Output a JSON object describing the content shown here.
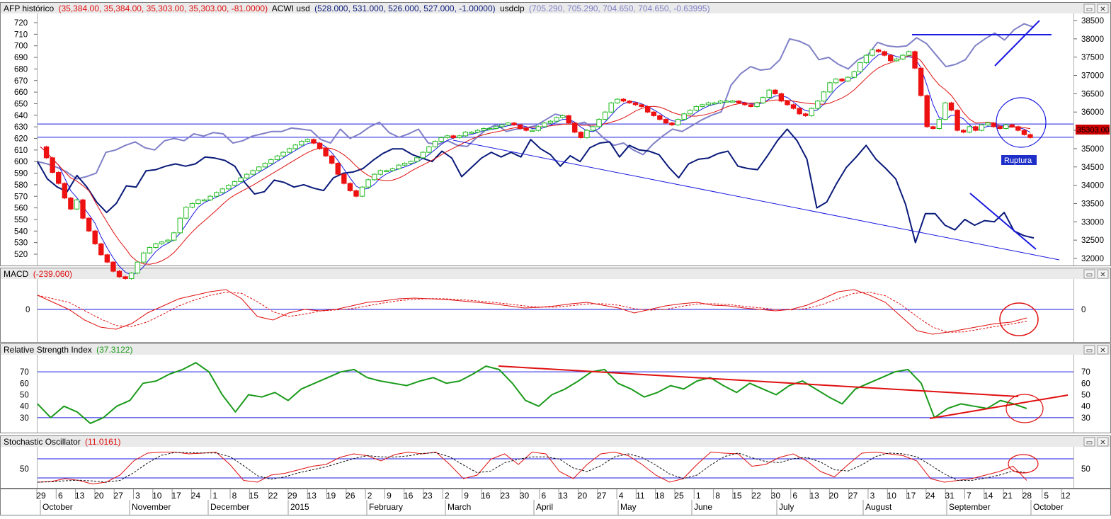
{
  "chart_data": [
    {
      "type": "candlestick",
      "pane": "price",
      "title": "AFP histórico",
      "title_values": "(35,384.00, 35,384.00, 35,303.00, 35,303.00, -81.0000)",
      "series2_name": "ACWI usd",
      "series2_values": "(528.000, 531.000, 526.000, 527.000, -1.00000)",
      "series3_name": "usdclp",
      "series3_values": "(705.290, 705.290, 704.650, 704.650, -0.63995)",
      "left_axis": {
        "min": 520,
        "max": 720,
        "ticks": [
          720,
          710,
          700,
          690,
          680,
          670,
          660,
          650,
          640,
          630,
          620,
          610,
          600,
          590,
          580,
          570,
          560,
          550,
          540,
          530,
          520
        ]
      },
      "right_axis": {
        "min": 32000,
        "max": 38500,
        "ticks": [
          "38500",
          "38000",
          "37500",
          "37000",
          "36500",
          "36000",
          "35500",
          "35000",
          "34500",
          "34000",
          "33500",
          "33000",
          "32500",
          "32000"
        ]
      },
      "last_price_label": "35303.00",
      "annotation": "Ruptura",
      "horizontal_levels_left_axis": [
        632.5,
        621
      ],
      "afp_close": [
        35050,
        34750,
        34350,
        34050,
        33650,
        33350,
        33600,
        33100,
        32750,
        32400,
        32100,
        31900,
        31650,
        31500,
        31450,
        31600,
        31900,
        32150,
        32300,
        32400,
        32450,
        32500,
        32700,
        33100,
        33400,
        33500,
        33600,
        33600,
        33700,
        33800,
        33900,
        34000,
        34100,
        34200,
        34300,
        34400,
        34500,
        34600,
        34700,
        34800,
        34900,
        35000,
        35100,
        35200,
        35250,
        35150,
        35000,
        34800,
        34600,
        34300,
        34050,
        33850,
        33700,
        33950,
        34150,
        34300,
        34400,
        34400,
        34450,
        34550,
        34600,
        34650,
        34750,
        34900,
        35050,
        35200,
        35300,
        35350,
        35300,
        35350,
        35450,
        35450,
        35500,
        35550,
        35550,
        35600,
        35650,
        35700,
        35650,
        35550,
        35500,
        35500,
        35600,
        35700,
        35750,
        35850,
        35900,
        35700,
        35450,
        35300,
        35500,
        35600,
        35800,
        36000,
        36250,
        36350,
        36300,
        36250,
        36200,
        36150,
        36000,
        35900,
        35800,
        35700,
        35650,
        35800,
        35950,
        36050,
        36150,
        36200,
        36250,
        36250,
        36300,
        36300,
        36300,
        36250,
        36200,
        36150,
        36250,
        36400,
        36600,
        36500,
        36300,
        36200,
        36100,
        35950,
        35900,
        36100,
        36300,
        36550,
        36800,
        36900,
        36850,
        36950,
        37100,
        37350,
        37550,
        37700,
        37650,
        37550,
        37400,
        37450,
        37550,
        37650,
        37200,
        36450,
        35600,
        35550,
        35800,
        36250,
        36050,
        35500,
        35450,
        35600,
        35500,
        35650,
        35700,
        35600,
        35550,
        35650,
        35600,
        35500,
        35384,
        35303
      ],
      "acwi_points": [
        600,
        585,
        578,
        574,
        588,
        578,
        565,
        556,
        564,
        579,
        578,
        592,
        593,
        596,
        598,
        596,
        598,
        604,
        603,
        601,
        596,
        582,
        572,
        574,
        584,
        582,
        578,
        580,
        577,
        575,
        586,
        590,
        591,
        594,
        601,
        607,
        611,
        611,
        606,
        603,
        600,
        609,
        603,
        587,
        595,
        603,
        608,
        604,
        608,
        604,
        619,
        611,
        606,
        596,
        605,
        600,
        612,
        616,
        617,
        604,
        614,
        610,
        609,
        606,
        595,
        586,
        598,
        602,
        603,
        607,
        609,
        596,
        594,
        593,
        605,
        618,
        628,
        618,
        602,
        560,
        565,
        581,
        595,
        604,
        614,
        602,
        594,
        585,
        563,
        530,
        555,
        555,
        545,
        541,
        550,
        545,
        549,
        548,
        556,
        540,
        536,
        534
      ],
      "usdclp_points": [
        600,
        598,
        595,
        591,
        585,
        587,
        590,
        608,
        610,
        614,
        617,
        612,
        610,
        618,
        620,
        618,
        624,
        622,
        625,
        624,
        616,
        618,
        622,
        624,
        626,
        626,
        629,
        628,
        627,
        619,
        616,
        628,
        620,
        624,
        630,
        634,
        625,
        621,
        624,
        628,
        616,
        615,
        618,
        614,
        613,
        621,
        628,
        632,
        626,
        628,
        629,
        631,
        636,
        641,
        639,
        632,
        634,
        628,
        620,
        614,
        616,
        610,
        606,
        615,
        622,
        628,
        626,
        631,
        636,
        640,
        643,
        666,
        676,
        682,
        679,
        680,
        688,
        706,
        704,
        700,
        688,
        690,
        684,
        680,
        688,
        692,
        703,
        700,
        699,
        700,
        707,
        702,
        692,
        682,
        684,
        688,
        700,
        706,
        711,
        705,
        714,
        719,
        716
      ],
      "trendlines": [
        "Rising line from mid-September low to top-right",
        "Horizontal resistance near 38000",
        "Long falling support line on ACWI from February to October",
        "Short falling line on ACWI in late September"
      ]
    },
    {
      "type": "line",
      "pane": "macd",
      "title": "MACD",
      "title_value": "(-239.060)",
      "y_tick": "0",
      "annotation": "circle around latest values"
    },
    {
      "type": "line",
      "pane": "rsi",
      "title": "Relative Strength Index",
      "title_value": "(37.3122)",
      "ticks": [
        70,
        60,
        50,
        40,
        30
      ],
      "horizontal_levels": [
        70,
        30
      ],
      "trendlines": [
        "Falling RSI trendline from March to late September",
        "Rising RSI trendline from late August low"
      ]
    },
    {
      "type": "line",
      "pane": "stochastic",
      "title": "Stochastic Oscillator",
      "title_value": "(11.0161)",
      "ticks": [
        50
      ]
    }
  ],
  "x_axis": {
    "day_labels": [
      "29",
      "6",
      "13",
      "20",
      "27",
      "3",
      "10",
      "17",
      "24",
      "1",
      "8",
      "15",
      "22",
      "29",
      "13",
      "19",
      "26",
      "2",
      "9",
      "16",
      "23",
      "2",
      "9",
      "16",
      "23",
      "30",
      "6",
      "13",
      "20",
      "27",
      "4",
      "11",
      "18",
      "25",
      "1",
      "8",
      "15",
      "22",
      "30",
      "6",
      "13",
      "20",
      "27",
      "3",
      "10",
      "17",
      "24",
      "31",
      "7",
      "14",
      "21",
      "28",
      "5",
      "12"
    ],
    "month_labels": [
      "October",
      "November",
      "December",
      "2015",
      "February",
      "March",
      "April",
      "May",
      "June",
      "July",
      "August",
      "September",
      "October"
    ]
  },
  "colors": {
    "up_candle": "#22bb22",
    "down_candle": "#ee1111",
    "acwi_line": "#0a1a7a",
    "usdclp_line": "#8080c8",
    "level_lines": "#1a1ae0",
    "macd_line": "#e01010",
    "rsi_line": "#1a9a1a",
    "trend_red": "#e01010",
    "label_bg": "#1e2ec8"
  }
}
